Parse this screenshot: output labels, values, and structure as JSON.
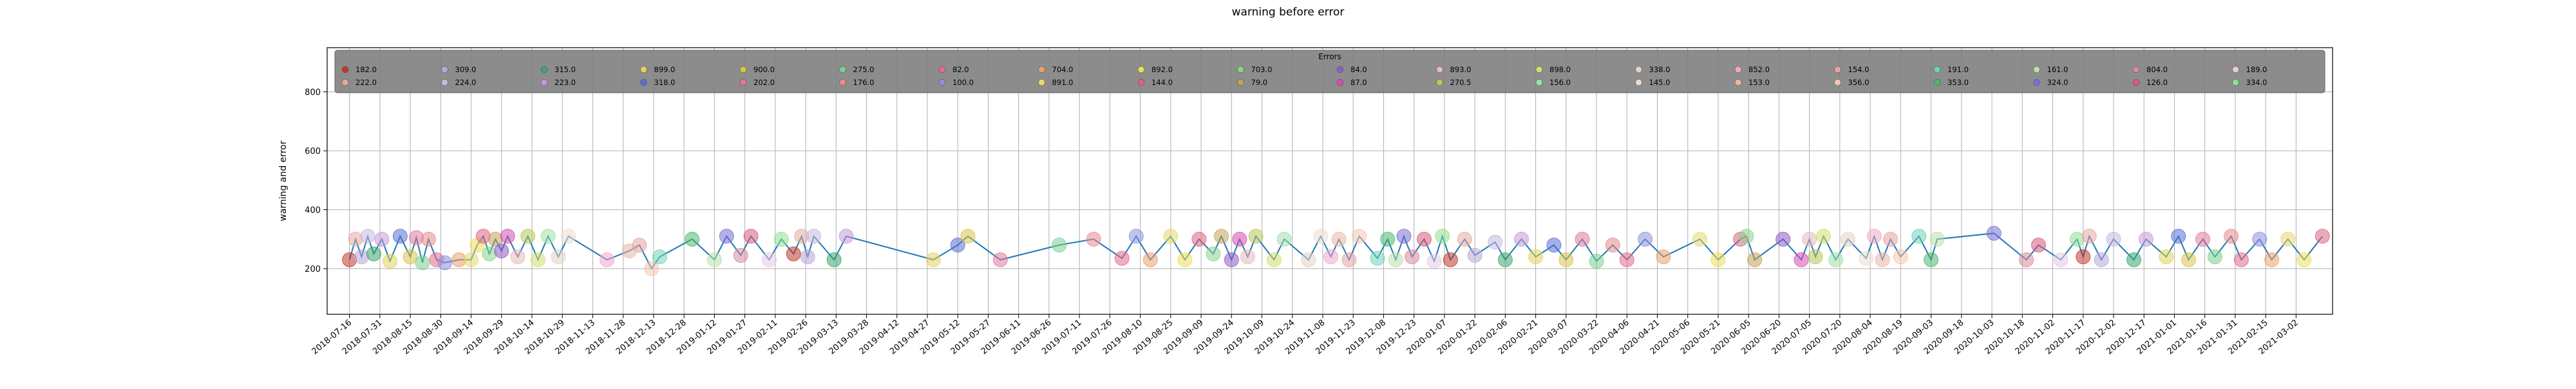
{
  "chart_data": {
    "type": "scatter",
    "title": "warning before error",
    "xlabel": "",
    "ylabel": "warning and error",
    "xlim": [
      "2018-07-05",
      "2021-03-20"
    ],
    "ylim": [
      45,
      950
    ],
    "yticks": [
      200,
      400,
      600,
      800
    ],
    "xticks": [
      "2018-07-16",
      "2018-07-31",
      "2018-08-15",
      "2018-08-30",
      "2018-09-14",
      "2018-09-29",
      "2018-10-14",
      "2018-10-29",
      "2018-11-13",
      "2018-11-28",
      "2018-12-13",
      "2018-12-28",
      "2019-01-12",
      "2019-01-27",
      "2019-02-11",
      "2019-02-26",
      "2019-03-13",
      "2019-03-28",
      "2019-04-12",
      "2019-04-27",
      "2019-05-12",
      "2019-05-27",
      "2019-06-11",
      "2019-06-26",
      "2019-07-11",
      "2019-07-26",
      "2019-08-10",
      "2019-08-25",
      "2019-09-09",
      "2019-09-24",
      "2019-10-09",
      "2019-10-24",
      "2019-11-08",
      "2019-11-23",
      "2019-12-08",
      "2019-12-23",
      "2020-01-07",
      "2020-01-22",
      "2020-02-06",
      "2020-02-21",
      "2020-03-07",
      "2020-03-22",
      "2020-04-06",
      "2020-04-21",
      "2020-05-06",
      "2020-05-21",
      "2020-06-05",
      "2020-06-20",
      "2020-07-05",
      "2020-07-20",
      "2020-08-04",
      "2020-08-19",
      "2020-09-03",
      "2020-09-18",
      "2020-10-03",
      "2020-10-18",
      "2020-11-02",
      "2020-11-17",
      "2020-12-02",
      "2020-12-17",
      "2021-01-01",
      "2021-01-16",
      "2021-01-31",
      "2021-02-15",
      "2021-03-02"
    ],
    "grid": true,
    "legend": {
      "title": "Errors",
      "placement": "top",
      "entries": [
        {
          "label": "182.0",
          "color": "#c0392b"
        },
        {
          "label": "222.0",
          "color": "#e5a9a0"
        },
        {
          "label": "309.0",
          "color": "#b9a6d8"
        },
        {
          "label": "224.0",
          "color": "#c8b8e0"
        },
        {
          "label": "315.0",
          "color": "#3aa86b"
        },
        {
          "label": "223.0",
          "color": "#c49bd6"
        },
        {
          "label": "899.0",
          "color": "#e2d35c"
        },
        {
          "label": "318.0",
          "color": "#5a6fd6"
        },
        {
          "label": "900.0",
          "color": "#d9c44a"
        },
        {
          "label": "202.0",
          "color": "#e07a9a"
        },
        {
          "label": "275.0",
          "color": "#7bd08e"
        },
        {
          "label": "176.0",
          "color": "#e88a8a"
        },
        {
          "label": "82.0",
          "color": "#e56a8d"
        },
        {
          "label": "100.0",
          "color": "#8f8fe0"
        },
        {
          "label": "704.0",
          "color": "#e9a06a"
        },
        {
          "label": "891.0",
          "color": "#e6d970"
        },
        {
          "label": "892.0",
          "color": "#eedd55"
        },
        {
          "label": "144.0",
          "color": "#e0627d"
        },
        {
          "label": "703.0",
          "color": "#8ad48a"
        },
        {
          "label": "79.0",
          "color": "#c5a25a"
        },
        {
          "label": "84.0",
          "color": "#8e5bc7"
        },
        {
          "label": "87.0",
          "color": "#d64fb0"
        },
        {
          "label": "893.0",
          "color": "#e7b9b9"
        },
        {
          "label": "270.5",
          "color": "#b8c85a"
        },
        {
          "label": "898.0",
          "color": "#d2e06a"
        },
        {
          "label": "156.0",
          "color": "#9fe0a8"
        },
        {
          "label": "338.0",
          "color": "#e3d2c2"
        },
        {
          "label": "145.0",
          "color": "#ecdcd0"
        },
        {
          "label": "852.0",
          "color": "#f0a8c8"
        },
        {
          "label": "153.0",
          "color": "#e9b7a4"
        },
        {
          "label": "154.0",
          "color": "#e6a3a3"
        },
        {
          "label": "356.0",
          "color": "#f5c6b0"
        },
        {
          "label": "191.0",
          "color": "#6fd3b8"
        },
        {
          "label": "353.0",
          "color": "#4cb86e"
        },
        {
          "label": "161.0",
          "color": "#b9e0a8"
        },
        {
          "label": "324.0",
          "color": "#7a6fd6"
        },
        {
          "label": "804.0",
          "color": "#d88a9a"
        },
        {
          "label": "126.0",
          "color": "#d85a7a"
        },
        {
          "label": "189.0",
          "color": "#e6c9e6"
        },
        {
          "label": "334.0",
          "color": "#8fe08f"
        }
      ]
    },
    "series": [
      {
        "label_ref": "warning",
        "x": [
          "2018-07-16",
          "2018-07-19",
          "2018-07-22",
          "2018-07-25",
          "2018-07-28",
          "2018-08-01",
          "2018-08-05",
          "2018-08-10",
          "2018-08-15",
          "2018-08-18",
          "2018-08-21",
          "2018-08-24",
          "2018-08-28",
          "2018-09-01",
          "2018-09-08",
          "2018-09-14",
          "2018-09-17",
          "2018-09-20",
          "2018-09-23",
          "2018-09-26",
          "2018-09-29",
          "2018-10-02",
          "2018-10-07",
          "2018-10-12",
          "2018-10-17",
          "2018-10-22",
          "2018-10-27",
          "2018-11-01",
          "2018-11-20",
          "2018-12-01",
          "2018-12-06",
          "2018-12-12",
          "2018-12-16",
          "2019-01-01",
          "2019-01-12",
          "2019-01-18",
          "2019-01-25",
          "2019-01-30",
          "2019-02-08",
          "2019-02-14",
          "2019-02-20",
          "2019-02-24",
          "2019-02-27",
          "2019-03-02",
          "2019-03-12",
          "2019-03-18",
          "2019-04-30",
          "2019-05-12",
          "2019-05-17",
          "2019-06-02",
          "2019-07-01",
          "2019-07-18",
          "2019-08-01",
          "2019-08-08",
          "2019-08-15",
          "2019-08-25",
          "2019-09-01",
          "2019-09-08",
          "2019-09-15",
          "2019-09-19",
          "2019-09-24",
          "2019-09-28",
          "2019-10-02",
          "2019-10-06",
          "2019-10-15",
          "2019-10-20",
          "2019-11-01",
          "2019-11-07",
          "2019-11-12",
          "2019-11-16",
          "2019-11-21",
          "2019-11-26",
          "2019-12-05",
          "2019-12-10",
          "2019-12-14",
          "2019-12-18",
          "2019-12-22",
          "2019-12-28",
          "2020-01-02",
          "2020-01-06",
          "2020-01-10",
          "2020-01-17",
          "2020-01-22",
          "2020-02-01",
          "2020-02-06",
          "2020-02-14",
          "2020-02-21",
          "2020-03-01",
          "2020-03-07",
          "2020-03-15",
          "2020-03-22",
          "2020-03-30",
          "2020-04-06",
          "2020-04-15",
          "2020-04-24",
          "2020-05-12",
          "2020-05-21",
          "2020-06-01",
          "2020-06-04",
          "2020-06-08",
          "2020-06-22",
          "2020-07-01",
          "2020-07-05",
          "2020-07-08",
          "2020-07-12",
          "2020-07-18",
          "2020-07-24",
          "2020-08-02",
          "2020-08-06",
          "2020-08-10",
          "2020-08-14",
          "2020-08-19",
          "2020-08-28",
          "2020-09-03",
          "2020-09-06",
          "2020-10-04",
          "2020-10-20",
          "2020-10-26",
          "2020-11-06",
          "2020-11-14",
          "2020-11-17",
          "2020-11-20",
          "2020-11-26",
          "2020-12-02",
          "2020-12-12",
          "2020-12-18",
          "2020-12-28",
          "2021-01-03",
          "2021-01-08",
          "2021-01-15",
          "2021-01-21",
          "2021-01-29",
          "2021-02-03",
          "2021-02-12",
          "2021-02-18",
          "2021-02-26",
          "2021-03-06",
          "2021-03-15"
        ],
        "y": [
          230,
          300,
          240,
          310,
          250,
          300,
          225,
          310,
          240,
          305,
          220,
          300,
          230,
          220,
          230,
          230,
          280,
          310,
          250,
          300,
          260,
          310,
          240,
          310,
          230,
          310,
          240,
          310,
          230,
          260,
          280,
          200,
          240,
          300,
          230,
          310,
          245,
          310,
          230,
          300,
          250,
          310,
          240,
          310,
          230,
          310,
          230,
          280,
          310,
          230,
          280,
          300,
          235,
          310,
          230,
          310,
          230,
          300,
          250,
          310,
          230,
          300,
          240,
          310,
          230,
          300,
          230,
          310,
          240,
          300,
          230,
          310,
          235,
          300,
          230,
          310,
          240,
          300,
          225,
          310,
          230,
          300,
          245,
          290,
          230,
          300,
          240,
          280,
          230,
          300,
          225,
          280,
          230,
          300,
          240,
          300,
          230,
          300,
          310,
          230,
          300,
          230,
          300,
          240,
          310,
          230,
          300,
          235,
          310,
          230,
          300,
          240,
          310,
          230,
          300,
          320,
          230,
          280,
          230,
          300,
          240,
          310,
          230,
          300,
          230,
          300,
          240,
          310,
          230,
          300,
          240,
          310,
          230,
          300,
          230,
          300,
          230,
          310
        ],
        "color": "#1f77b4"
      }
    ]
  }
}
